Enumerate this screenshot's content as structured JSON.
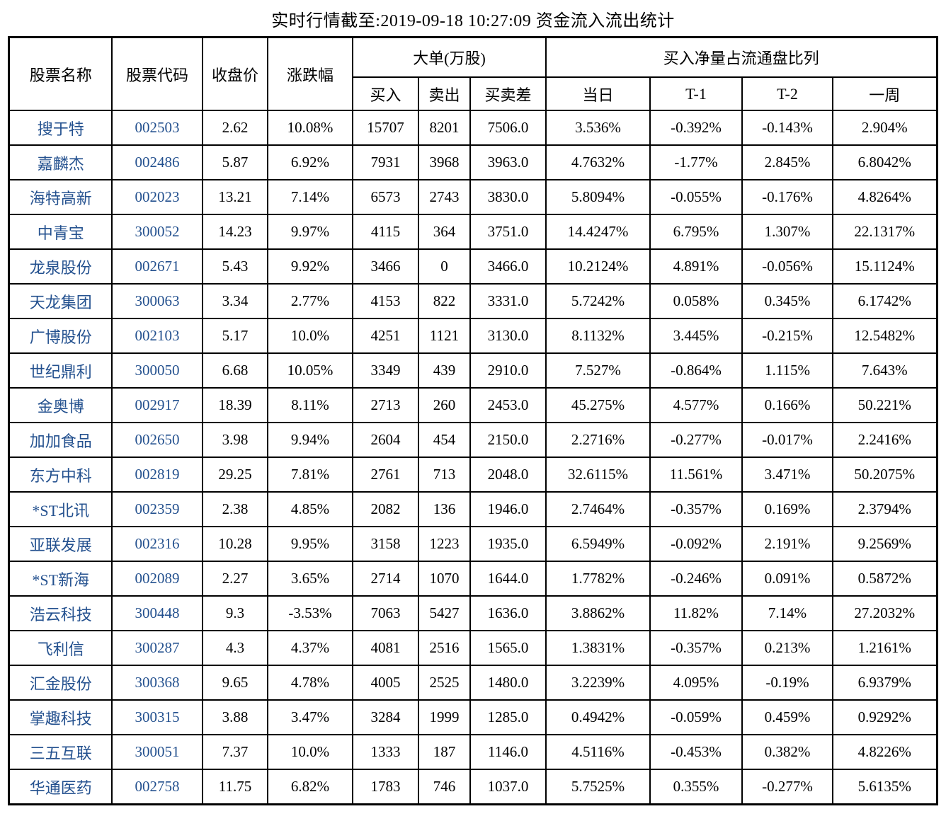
{
  "title": "实时行情截至:2019-09-18 10:27:09 资金流入流出统计",
  "colors": {
    "accent_blue": "#24518F",
    "border_black": "#000000",
    "background": "#FFFFFF"
  },
  "table": {
    "header": {
      "name": "股票名称",
      "code": "股票代码",
      "price": "收盘价",
      "change": "涨跌幅",
      "big_order_group": "大单(万股)",
      "buy": "买入",
      "sell": "卖出",
      "diff": "买卖差",
      "net_buy_group": "买入净量占流通盘比列",
      "today": "当日",
      "t1": "T-1",
      "t2": "T-2",
      "week": "一周"
    },
    "rows": [
      {
        "name": "搜于特",
        "code": "002503",
        "price": "2.62",
        "change": "10.08%",
        "buy": "15707",
        "sell": "8201",
        "diff": "7506.0",
        "today": "3.536%",
        "t1": "-0.392%",
        "t2": "-0.143%",
        "week": "2.904%"
      },
      {
        "name": "嘉麟杰",
        "code": "002486",
        "price": "5.87",
        "change": "6.92%",
        "buy": "7931",
        "sell": "3968",
        "diff": "3963.0",
        "today": "4.7632%",
        "t1": "-1.77%",
        "t2": "2.845%",
        "week": "6.8042%"
      },
      {
        "name": "海特高新",
        "code": "002023",
        "price": "13.21",
        "change": "7.14%",
        "buy": "6573",
        "sell": "2743",
        "diff": "3830.0",
        "today": "5.8094%",
        "t1": "-0.055%",
        "t2": "-0.176%",
        "week": "4.8264%"
      },
      {
        "name": "中青宝",
        "code": "300052",
        "price": "14.23",
        "change": "9.97%",
        "buy": "4115",
        "sell": "364",
        "diff": "3751.0",
        "today": "14.4247%",
        "t1": "6.795%",
        "t2": "1.307%",
        "week": "22.1317%"
      },
      {
        "name": "龙泉股份",
        "code": "002671",
        "price": "5.43",
        "change": "9.92%",
        "buy": "3466",
        "sell": "0",
        "diff": "3466.0",
        "today": "10.2124%",
        "t1": "4.891%",
        "t2": "-0.056%",
        "week": "15.1124%"
      },
      {
        "name": "天龙集团",
        "code": "300063",
        "price": "3.34",
        "change": "2.77%",
        "buy": "4153",
        "sell": "822",
        "diff": "3331.0",
        "today": "5.7242%",
        "t1": "0.058%",
        "t2": "0.345%",
        "week": "6.1742%"
      },
      {
        "name": "广博股份",
        "code": "002103",
        "price": "5.17",
        "change": "10.0%",
        "buy": "4251",
        "sell": "1121",
        "diff": "3130.0",
        "today": "8.1132%",
        "t1": "3.445%",
        "t2": "-0.215%",
        "week": "12.5482%"
      },
      {
        "name": "世纪鼎利",
        "code": "300050",
        "price": "6.68",
        "change": "10.05%",
        "buy": "3349",
        "sell": "439",
        "diff": "2910.0",
        "today": "7.527%",
        "t1": "-0.864%",
        "t2": "1.115%",
        "week": "7.643%"
      },
      {
        "name": "金奥博",
        "code": "002917",
        "price": "18.39",
        "change": "8.11%",
        "buy": "2713",
        "sell": "260",
        "diff": "2453.0",
        "today": "45.275%",
        "t1": "4.577%",
        "t2": "0.166%",
        "week": "50.221%"
      },
      {
        "name": "加加食品",
        "code": "002650",
        "price": "3.98",
        "change": "9.94%",
        "buy": "2604",
        "sell": "454",
        "diff": "2150.0",
        "today": "2.2716%",
        "t1": "-0.277%",
        "t2": "-0.017%",
        "week": "2.2416%"
      },
      {
        "name": "东方中科",
        "code": "002819",
        "price": "29.25",
        "change": "7.81%",
        "buy": "2761",
        "sell": "713",
        "diff": "2048.0",
        "today": "32.6115%",
        "t1": "11.561%",
        "t2": "3.471%",
        "week": "50.2075%"
      },
      {
        "name": "*ST北讯",
        "code": "002359",
        "price": "2.38",
        "change": "4.85%",
        "buy": "2082",
        "sell": "136",
        "diff": "1946.0",
        "today": "2.7464%",
        "t1": "-0.357%",
        "t2": "0.169%",
        "week": "2.3794%"
      },
      {
        "name": "亚联发展",
        "code": "002316",
        "price": "10.28",
        "change": "9.95%",
        "buy": "3158",
        "sell": "1223",
        "diff": "1935.0",
        "today": "6.5949%",
        "t1": "-0.092%",
        "t2": "2.191%",
        "week": "9.2569%"
      },
      {
        "name": "*ST新海",
        "code": "002089",
        "price": "2.27",
        "change": "3.65%",
        "buy": "2714",
        "sell": "1070",
        "diff": "1644.0",
        "today": "1.7782%",
        "t1": "-0.246%",
        "t2": "0.091%",
        "week": "0.5872%"
      },
      {
        "name": "浩云科技",
        "code": "300448",
        "price": "9.3",
        "change": "-3.53%",
        "buy": "7063",
        "sell": "5427",
        "diff": "1636.0",
        "today": "3.8862%",
        "t1": "11.82%",
        "t2": "7.14%",
        "week": "27.2032%"
      },
      {
        "name": "飞利信",
        "code": "300287",
        "price": "4.3",
        "change": "4.37%",
        "buy": "4081",
        "sell": "2516",
        "diff": "1565.0",
        "today": "1.3831%",
        "t1": "-0.357%",
        "t2": "0.213%",
        "week": "1.2161%"
      },
      {
        "name": "汇金股份",
        "code": "300368",
        "price": "9.65",
        "change": "4.78%",
        "buy": "4005",
        "sell": "2525",
        "diff": "1480.0",
        "today": "3.2239%",
        "t1": "4.095%",
        "t2": "-0.19%",
        "week": "6.9379%"
      },
      {
        "name": "掌趣科技",
        "code": "300315",
        "price": "3.88",
        "change": "3.47%",
        "buy": "3284",
        "sell": "1999",
        "diff": "1285.0",
        "today": "0.4942%",
        "t1": "-0.059%",
        "t2": "0.459%",
        "week": "0.9292%"
      },
      {
        "name": "三五互联",
        "code": "300051",
        "price": "7.37",
        "change": "10.0%",
        "buy": "1333",
        "sell": "187",
        "diff": "1146.0",
        "today": "4.5116%",
        "t1": "-0.453%",
        "t2": "0.382%",
        "week": "4.8226%"
      },
      {
        "name": "华通医药",
        "code": "002758",
        "price": "11.75",
        "change": "6.82%",
        "buy": "1783",
        "sell": "746",
        "diff": "1037.0",
        "today": "5.7525%",
        "t1": "0.355%",
        "t2": "-0.277%",
        "week": "5.6135%"
      }
    ]
  }
}
